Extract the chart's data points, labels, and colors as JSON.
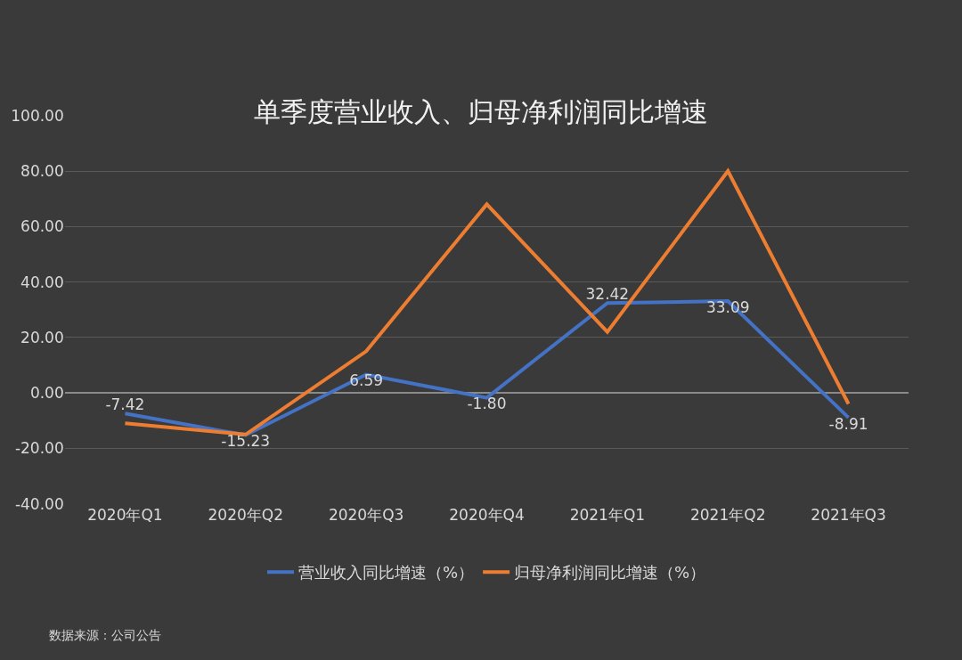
{
  "chart_data": {
    "type": "line",
    "title": "单季度营业收入、归母净利润同比增速",
    "categories": [
      "2020年Q1",
      "2020年Q2",
      "2020年Q3",
      "2020年Q4",
      "2021年Q1",
      "2021年Q2",
      "2021年Q3"
    ],
    "series": [
      {
        "name": "营业收入同比增速（%）",
        "color": "#4472c4",
        "values": [
          -7.42,
          -15.23,
          6.59,
          -1.8,
          32.42,
          33.09,
          -8.91
        ],
        "value_labels": [
          "-7.42",
          "-15.23",
          "6.59",
          "-1.80",
          "32.42",
          "33.09",
          "-8.91"
        ]
      },
      {
        "name": "归母净利润同比增速（%）",
        "color": "#ed7d31",
        "values": [
          -11,
          -15,
          15,
          68,
          22,
          80,
          -4
        ]
      }
    ],
    "ylim": [
      -40,
      100
    ],
    "yticks": [
      {
        "value": -40,
        "label": "-40.00"
      },
      {
        "value": -20,
        "label": "-20.00"
      },
      {
        "value": 0,
        "label": "0.00"
      },
      {
        "value": 20,
        "label": "20.00"
      },
      {
        "value": 40,
        "label": "40.00"
      },
      {
        "value": 60,
        "label": "60.00"
      },
      {
        "value": 80,
        "label": "80.00"
      },
      {
        "value": 100,
        "label": "100.00"
      }
    ],
    "grid": "y",
    "legend": "bottom",
    "marker": "none",
    "line_style": "solid",
    "annotations": [
      "数据来源：公司公告"
    ]
  }
}
